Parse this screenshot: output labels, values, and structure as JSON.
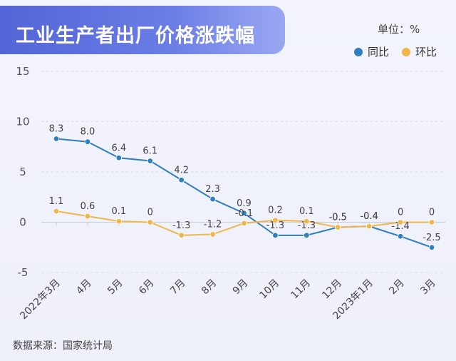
{
  "header": {
    "title": "工业生产者出厂价格涨跌幅"
  },
  "unit_label": "单位：%",
  "legend": [
    {
      "label": "同比",
      "color": "#2f7fbf"
    },
    {
      "label": "环比",
      "color": "#f0b64c"
    }
  ],
  "source": "数据来源：国家统计局",
  "chart_data": {
    "type": "line",
    "title": "工业生产者出厂价格涨跌幅",
    "categories": [
      "2022年3月",
      "4月",
      "5月",
      "6月",
      "7月",
      "8月",
      "9月",
      "10月",
      "11月",
      "12月",
      "2023年1月",
      "2月",
      "3月"
    ],
    "ylim": [
      -5,
      15
    ],
    "yticks": [
      -5,
      0,
      5,
      10,
      15
    ],
    "grid": true,
    "series": [
      {
        "name": "同比",
        "color": "#2f7fbf",
        "values": [
          8.3,
          8.0,
          6.4,
          6.1,
          4.2,
          2.3,
          0.9,
          -1.3,
          -1.3,
          -0.5,
          -0.4,
          -1.4,
          -2.5
        ],
        "labels": [
          "8.3",
          "8.0",
          "6.4",
          "6.1",
          "4.2",
          "2.3",
          "0.9",
          "-1.3",
          "-1.3",
          "-0.5",
          "-0.4",
          "-1.4",
          "-2.5"
        ]
      },
      {
        "name": "环比",
        "color": "#f0b64c",
        "values": [
          1.1,
          0.6,
          0.1,
          0,
          -1.3,
          -1.2,
          -0.1,
          0.2,
          0.1,
          -0.5,
          -0.4,
          0,
          0
        ],
        "labels": [
          "1.1",
          "0.6",
          "0.1",
          "0",
          "-1.3",
          "-1.2",
          "-0.1",
          "0.2",
          "0.1",
          "-0.5",
          "-0.4",
          "0",
          "0"
        ]
      }
    ]
  }
}
